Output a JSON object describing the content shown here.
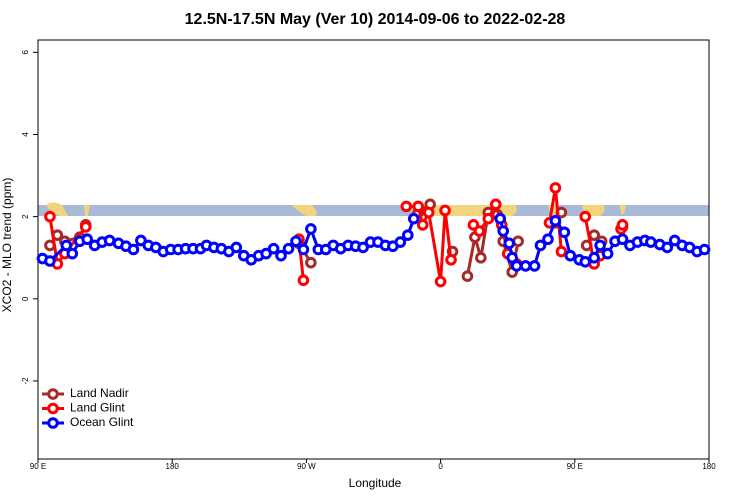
{
  "chart_data": {
    "type": "line",
    "title": "12.5N-17.5N May (Ver 10)   2014-09-06 to 2022-02-28",
    "xlabel": "Longitude",
    "ylabel": "XCO2 - MLO trend (ppm)",
    "xlim": [
      90,
      540
    ],
    "ylim": [
      -3.9,
      6.3
    ],
    "xticks": [
      {
        "value": 90,
        "label": "90 E"
      },
      180,
      {
        "value": 270,
        "label": "90 W"
      },
      {
        "value": 360,
        "label": "0"
      },
      {
        "value": 450,
        "label": "90 E"
      },
      {
        "value": 540,
        "label": "180"
      }
    ],
    "yticks": [
      -2,
      0,
      2,
      4,
      6
    ],
    "legend": "bottomleft",
    "series": [
      {
        "name": "Land Nadir",
        "color": "#a52a2a",
        "x": [
          98,
          103,
          108,
          118,
          122,
          null,
          265,
          273,
          null,
          345,
          353,
          null,
          368,
          null,
          378,
          383,
          387,
          392,
          398,
          402,
          408,
          412,
          null,
          437,
          441,
          null,
          458,
          463,
          468,
          null,
          482
        ],
        "values": [
          1.3,
          1.55,
          1.4,
          1.5,
          1.8,
          null,
          1.35,
          0.88,
          null,
          2.1,
          2.3,
          null,
          1.15,
          null,
          0.55,
          1.5,
          1.0,
          2.1,
          2.05,
          1.4,
          0.65,
          1.4,
          null,
          1.85,
          2.1,
          null,
          1.3,
          1.55,
          1.4,
          null,
          1.75
        ]
      },
      {
        "name": "Land Glint",
        "color": "#ff0000",
        "x": [
          98,
          103,
          108,
          122,
          null,
          265,
          268,
          null,
          337,
          345,
          348,
          352,
          360,
          363,
          367,
          null,
          382,
          386,
          392,
          397,
          401,
          405,
          411,
          null,
          433,
          437,
          441,
          null,
          457,
          463,
          467,
          null,
          481,
          482
        ],
        "values": [
          2.0,
          0.85,
          1.1,
          1.75,
          null,
          1.45,
          0.45,
          null,
          2.25,
          2.25,
          1.8,
          2.1,
          0.42,
          2.15,
          0.95,
          null,
          1.8,
          1.65,
          1.95,
          2.3,
          1.8,
          1.1,
          0.85,
          null,
          1.85,
          2.7,
          1.15,
          null,
          2.0,
          0.85,
          1.05,
          null,
          1.7,
          1.8
        ]
      },
      {
        "name": "Ocean Glint",
        "color": "#0000ff",
        "x": [
          93,
          98,
          109,
          113,
          118,
          123,
          128,
          133,
          138,
          144,
          149,
          154,
          159,
          164,
          169,
          174,
          179,
          184,
          189,
          194,
          199,
          203,
          208,
          213,
          218,
          223,
          228,
          233,
          238,
          243,
          248,
          253,
          258,
          263,
          268,
          273,
          278,
          283,
          288,
          293,
          298,
          303,
          308,
          313,
          318,
          323,
          328,
          333,
          338,
          342,
          null,
          400,
          402,
          406,
          408,
          411,
          417,
          423,
          427,
          432,
          437,
          443,
          447,
          453,
          457,
          463,
          467,
          472,
          477,
          482,
          487,
          492,
          497,
          501,
          507,
          512,
          517,
          522,
          527,
          532,
          537
        ],
        "values": [
          0.98,
          0.92,
          1.3,
          1.1,
          1.4,
          1.45,
          1.3,
          1.38,
          1.42,
          1.35,
          1.28,
          1.2,
          1.42,
          1.3,
          1.25,
          1.15,
          1.2,
          1.2,
          1.22,
          1.22,
          1.22,
          1.3,
          1.25,
          1.22,
          1.15,
          1.25,
          1.05,
          0.95,
          1.05,
          1.1,
          1.22,
          1.05,
          1.22,
          1.4,
          1.2,
          1.7,
          1.2,
          1.2,
          1.3,
          1.22,
          1.3,
          1.28,
          1.25,
          1.38,
          1.38,
          1.3,
          1.28,
          1.38,
          1.55,
          1.95,
          null,
          1.95,
          1.65,
          1.35,
          1.0,
          0.8,
          0.8,
          0.8,
          1.3,
          1.45,
          1.9,
          1.62,
          1.05,
          0.95,
          0.9,
          1.0,
          1.3,
          1.1,
          1.4,
          1.45,
          1.3,
          1.38,
          1.42,
          1.38,
          1.32,
          1.25,
          1.42,
          1.3,
          1.25,
          1.15,
          1.2
        ]
      }
    ]
  }
}
